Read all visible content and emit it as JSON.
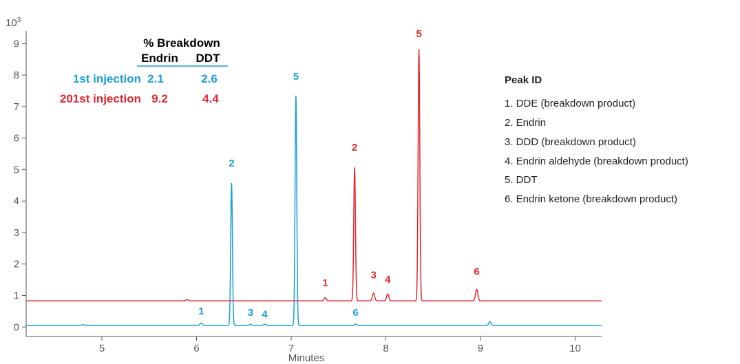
{
  "chart_data": {
    "type": "line",
    "xlabel": "Minutes",
    "ylabel_exponent": "10",
    "ylabel_power": "3",
    "xlim": [
      4.2,
      10.28
    ],
    "ylim": [
      -0.3,
      9.4
    ],
    "x_ticks": [
      5,
      6,
      7,
      8,
      9,
      10
    ],
    "y_ticks": [
      0,
      1,
      2,
      3,
      4,
      5,
      6,
      7,
      8,
      9
    ],
    "colors": {
      "blue": "#1a9fd9",
      "red": "#e0282e"
    },
    "series": [
      {
        "color": "blue",
        "baseline": 0.05,
        "peaks": [
          {
            "label": "1",
            "x": 6.05,
            "height": 0.08,
            "label_y": 0.4
          },
          {
            "label": "2",
            "x": 6.37,
            "height": 4.55,
            "label_y": 5.1
          },
          {
            "label": "3",
            "x": 6.57,
            "height": 0.04,
            "label_y": 0.35
          },
          {
            "label": "4",
            "x": 6.72,
            "height": 0.04,
            "label_y": 0.3
          },
          {
            "label": "5",
            "x": 7.05,
            "height": 7.3,
            "label_y": 7.85
          },
          {
            "label": "6",
            "x": 7.68,
            "height": 0.04,
            "label_y": 0.35
          }
        ],
        "minor": [
          {
            "x": 9.1,
            "height": 0.12
          },
          {
            "x": 4.8,
            "height": 0.03
          }
        ]
      },
      {
        "color": "red",
        "baseline": 0.83,
        "peaks": [
          {
            "label": "1",
            "x": 7.36,
            "height": 0.1,
            "label_y": 1.3
          },
          {
            "label": "2",
            "x": 7.67,
            "height": 4.25,
            "label_y": 5.6
          },
          {
            "label": "3",
            "x": 7.87,
            "height": 0.25,
            "label_y": 1.55
          },
          {
            "label": "4",
            "x": 8.02,
            "height": 0.22,
            "label_y": 1.4
          },
          {
            "label": "5",
            "x": 8.35,
            "height": 8.0,
            "label_y": 9.2
          },
          {
            "label": "6",
            "x": 8.96,
            "height": 0.37,
            "label_y": 1.65
          }
        ],
        "minor": [
          {
            "x": 5.9,
            "height": 0.04
          }
        ]
      }
    ],
    "breakdown_table": {
      "title": "% Breakdown",
      "columns": [
        "Endrin",
        "DDT"
      ],
      "rows": [
        {
          "label": "1st injection",
          "color": "blue",
          "values": [
            "2.1",
            "2.6"
          ]
        },
        {
          "label": "201st injection",
          "color": "red",
          "values": [
            "9.2",
            "4.4"
          ]
        }
      ]
    },
    "legend": {
      "title": "Peak ID",
      "placement": "right",
      "items": [
        "1. DDE (breakdown product)",
        "2. Endrin",
        "3. DDD (breakdown product)",
        "4. Endrin aldehyde (breakdown product)",
        "5. DDT",
        "6. Endrin ketone (breakdown product)"
      ]
    }
  }
}
